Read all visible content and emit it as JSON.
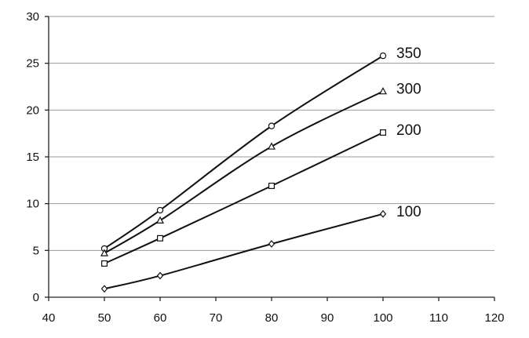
{
  "chart_data": {
    "type": "line",
    "title": "",
    "xlabel": "",
    "ylabel": "",
    "xlim": [
      40,
      120
    ],
    "ylim": [
      0,
      30
    ],
    "x_ticks": [
      40,
      50,
      60,
      70,
      80,
      90,
      100,
      110,
      120
    ],
    "y_ticks": [
      0,
      5,
      10,
      15,
      20,
      25,
      30
    ],
    "grid": "horizontal",
    "legend": "none (series labelled at line ends)",
    "series": [
      {
        "name": "350",
        "marker": "circle",
        "x": [
          50,
          60,
          80,
          100
        ],
        "y": [
          5.2,
          9.3,
          18.3,
          25.8
        ]
      },
      {
        "name": "300",
        "marker": "triangle",
        "x": [
          50,
          60,
          80,
          100
        ],
        "y": [
          4.7,
          8.2,
          16.1,
          22.0
        ]
      },
      {
        "name": "200",
        "marker": "square",
        "x": [
          50,
          60,
          80,
          100
        ],
        "y": [
          3.6,
          6.3,
          11.9,
          17.6
        ]
      },
      {
        "name": "100",
        "marker": "diamond",
        "x": [
          50,
          60,
          80,
          100
        ],
        "y": [
          0.9,
          2.3,
          5.7,
          8.9
        ]
      }
    ]
  }
}
